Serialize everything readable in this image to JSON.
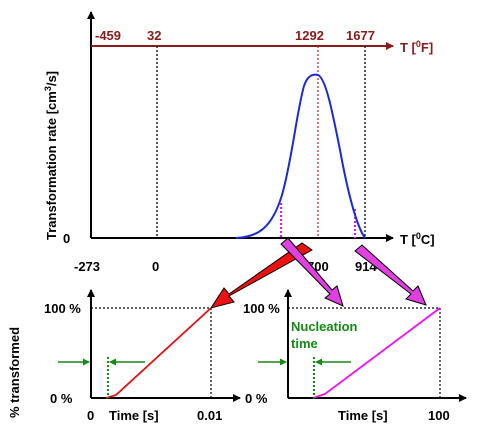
{
  "top_plot": {
    "ylabel": "Transformation rate [cm",
    "ylabel_sup": "3",
    "ylabel_end": "/s]",
    "y_zero": "0",
    "x_label_pre": "T  [",
    "x_label_sup": "0",
    "x_label_unit": "C]",
    "f_label_pre": "T  [",
    "f_label_sup": "0",
    "f_label_unit": "F]",
    "celsius_ticks": [
      "-273",
      "0",
      "700",
      "914"
    ],
    "fahrenheit_ticks": [
      "-459",
      "32",
      "1292",
      "1677"
    ]
  },
  "left_plot": {
    "ylabel": "% transformed",
    "y100": "100 %",
    "y0": "0 %",
    "x0": "0",
    "xlabel": "Time [s]",
    "xmax": "0.01"
  },
  "right_plot": {
    "y100": "100 %",
    "y0": "0 %",
    "xlabel": "Time [s]",
    "xmax": "100",
    "annotation_line1": "Nucleation",
    "annotation_line2": "time"
  },
  "colors": {
    "axis": "#000000",
    "fahrenheit": "#8b1a1a",
    "curve": "#1a2bd6",
    "left_curve": "#dd1111",
    "right_curve": "#ee11ee",
    "green": "#138a13",
    "arrow_red": "#ee1111",
    "arrow_magenta": "#e040e0"
  }
}
